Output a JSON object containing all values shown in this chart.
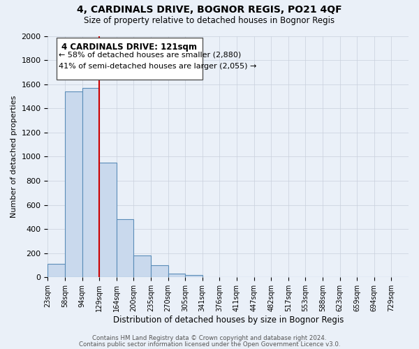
{
  "title": "4, CARDINALS DRIVE, BOGNOR REGIS, PO21 4QF",
  "subtitle": "Size of property relative to detached houses in Bognor Regis",
  "xlabel": "Distribution of detached houses by size in Bognor Regis",
  "ylabel": "Number of detached properties",
  "bin_labels": [
    "23sqm",
    "58sqm",
    "94sqm",
    "129sqm",
    "164sqm",
    "200sqm",
    "235sqm",
    "270sqm",
    "305sqm",
    "341sqm",
    "376sqm",
    "411sqm",
    "447sqm",
    "482sqm",
    "517sqm",
    "553sqm",
    "588sqm",
    "623sqm",
    "659sqm",
    "694sqm",
    "729sqm"
  ],
  "bar_heights": [
    110,
    1540,
    1570,
    950,
    480,
    180,
    100,
    30,
    20,
    0,
    0,
    0,
    0,
    0,
    0,
    0,
    0,
    0,
    0,
    0,
    0
  ],
  "bar_color": "#c9d9ed",
  "bar_edge_color": "#5b8db8",
  "red_line_x": 3,
  "red_line_color": "#cc0000",
  "annotation_title": "4 CARDINALS DRIVE: 121sqm",
  "annotation_line1": "← 58% of detached houses are smaller (2,880)",
  "annotation_line2": "41% of semi-detached houses are larger (2,055) →",
  "annotation_box_color": "#ffffff",
  "annotation_box_edge": "#555555",
  "ylim": [
    0,
    2000
  ],
  "yticks": [
    0,
    200,
    400,
    600,
    800,
    1000,
    1200,
    1400,
    1600,
    1800,
    2000
  ],
  "footer1": "Contains HM Land Registry data © Crown copyright and database right 2024.",
  "footer2": "Contains public sector information licensed under the Open Government Licence v3.0.",
  "bg_color": "#eaf0f8",
  "plot_bg_color": "#eaf0f8",
  "grid_color": "#c8d0dc"
}
